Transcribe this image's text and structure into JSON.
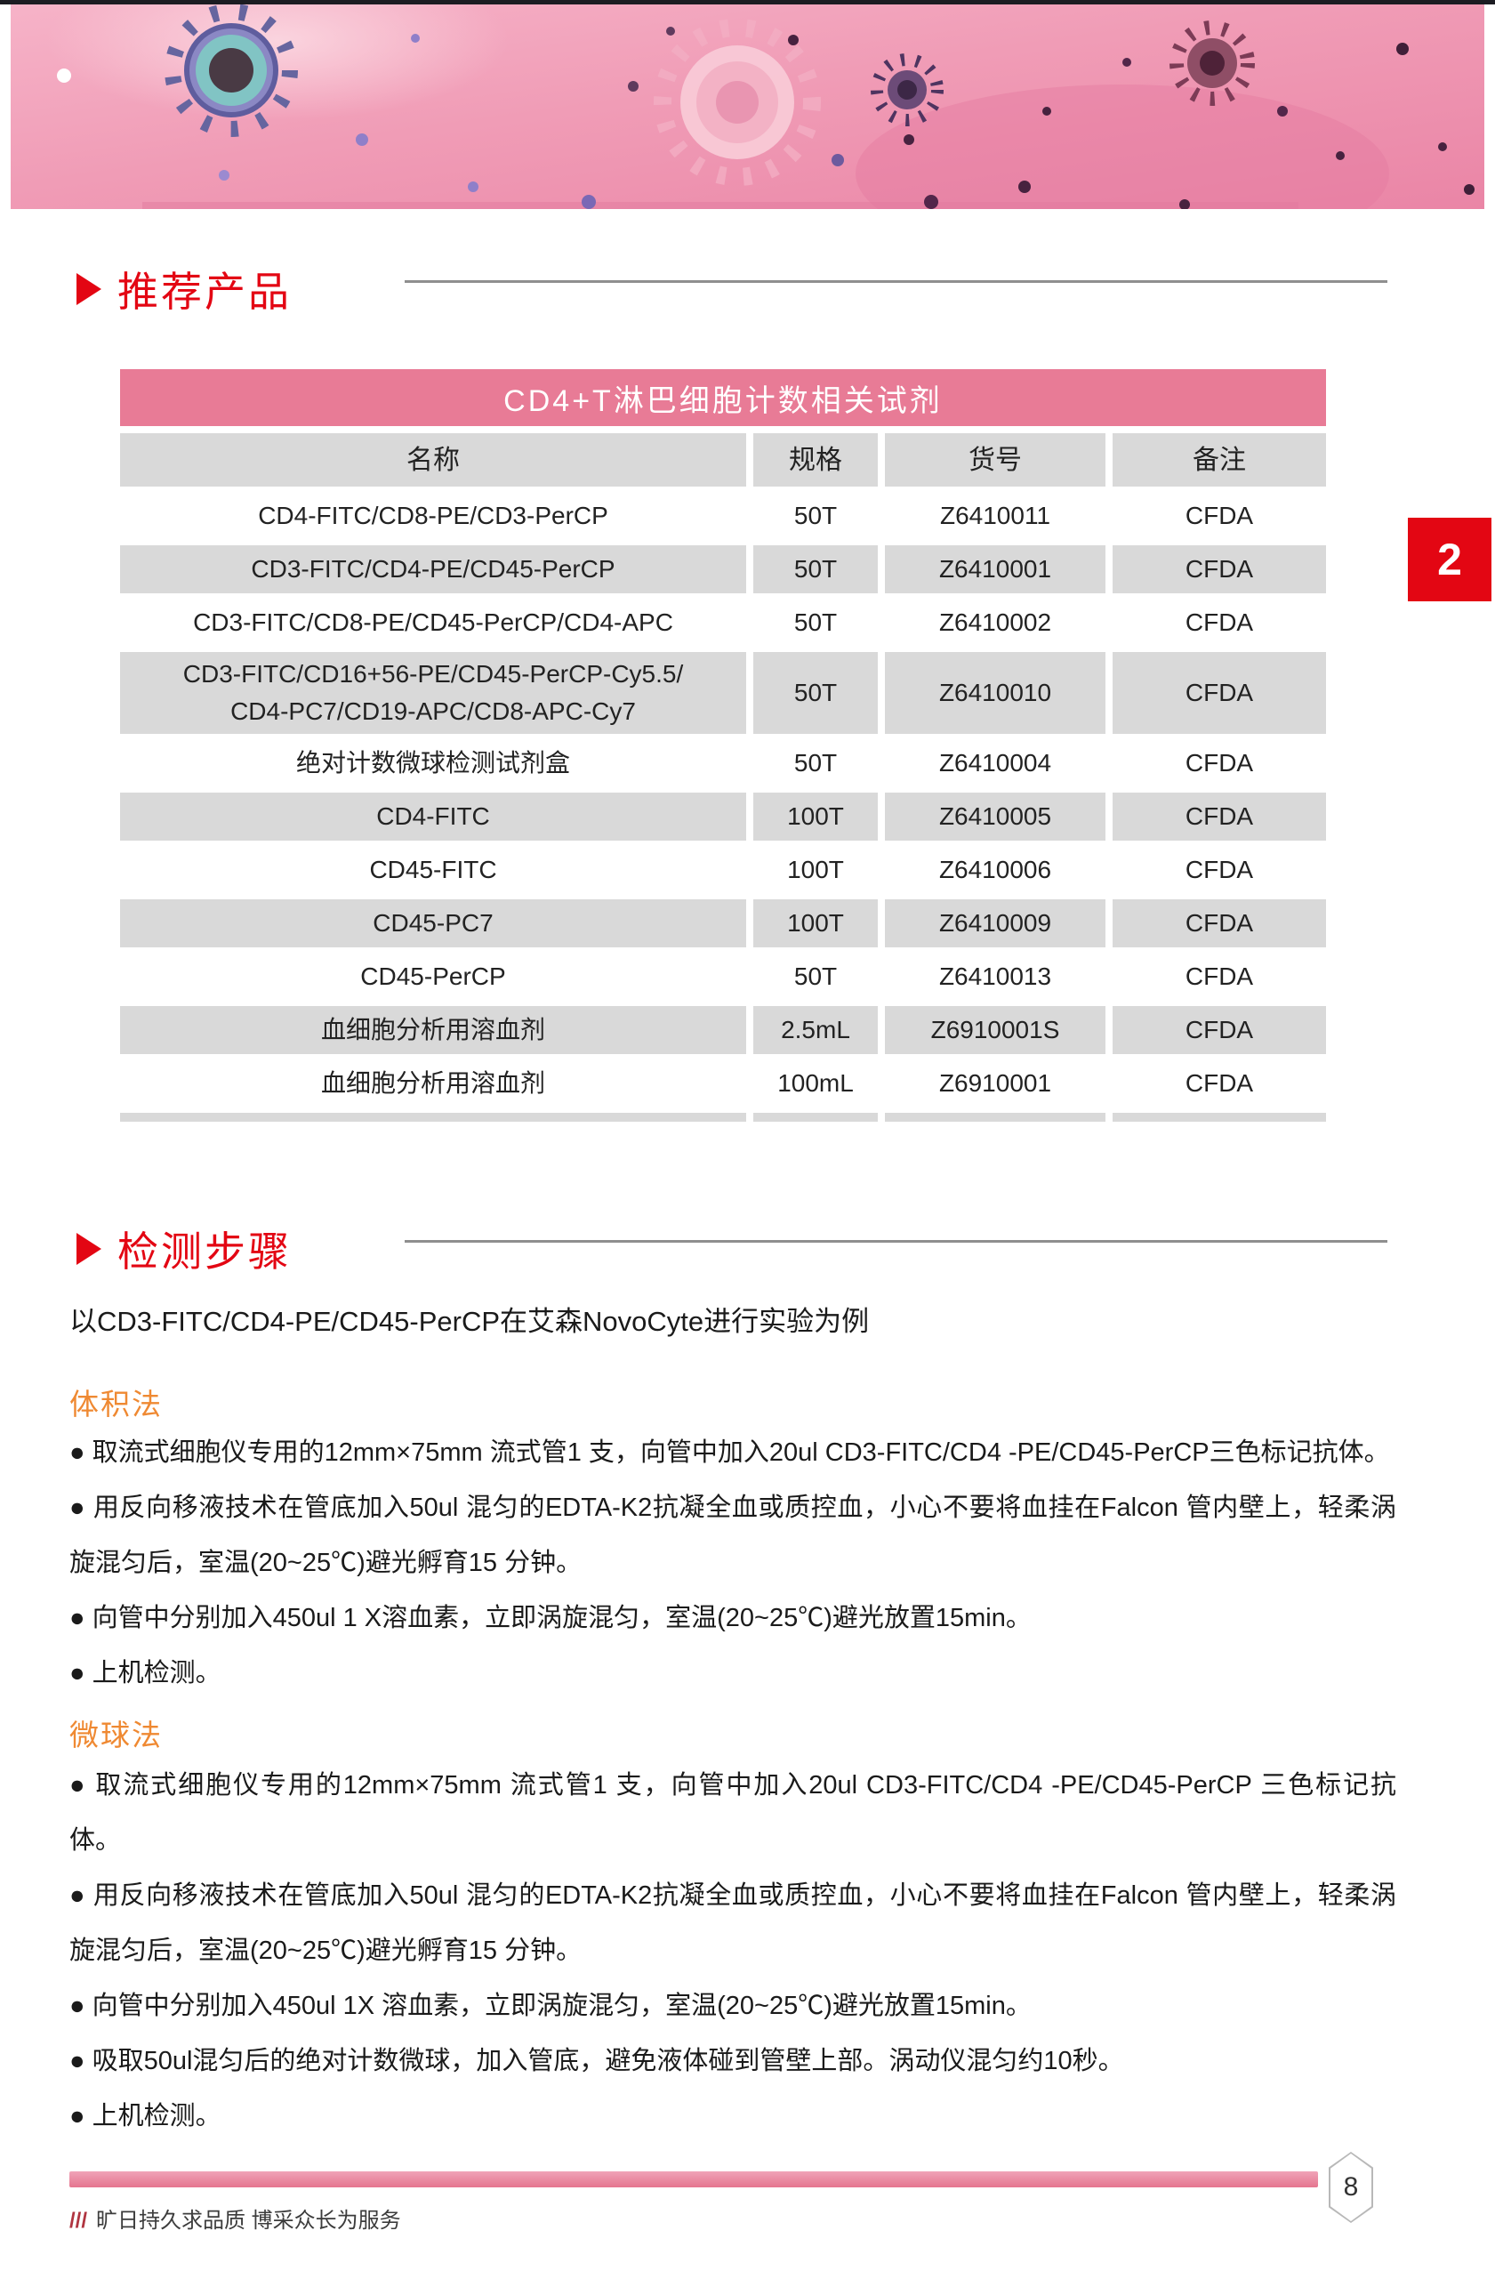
{
  "page": {
    "section1_title": "推荐产品",
    "section2_title": "检测步骤",
    "side_tab": "2",
    "page_number": "8",
    "footer_slashes": "///",
    "footer_tagline": "旷日持久求品质 博采众长为服务"
  },
  "table": {
    "title": "CD4+T淋巴细胞计数相关试剂",
    "headers": [
      "名称",
      "规格",
      "货号",
      "备注"
    ],
    "rows": [
      [
        "CD4-FITC/CD8-PE/CD3-PerCP",
        "50T",
        "Z6410011",
        "CFDA"
      ],
      [
        "CD3-FITC/CD4-PE/CD45-PerCP",
        "50T",
        "Z6410001",
        "CFDA"
      ],
      [
        "CD3-FITC/CD8-PE/CD45-PerCP/CD4-APC",
        "50T",
        "Z6410002",
        "CFDA"
      ],
      [
        "CD3-FITC/CD16+56-PE/CD45-PerCP-Cy5.5/\nCD4-PC7/CD19-APC/CD8-APC-Cy7",
        "50T",
        "Z6410010",
        "CFDA"
      ],
      [
        "绝对计数微球检测试剂盒",
        "50T",
        "Z6410004",
        "CFDA"
      ],
      [
        "CD4-FITC",
        "100T",
        "Z6410005",
        "CFDA"
      ],
      [
        "CD45-FITC",
        "100T",
        "Z6410006",
        "CFDA"
      ],
      [
        "CD45-PC7",
        "100T",
        "Z6410009",
        "CFDA"
      ],
      [
        "CD45-PerCP",
        "50T",
        "Z6410013",
        "CFDA"
      ],
      [
        "血细胞分析用溶血剂",
        "2.5mL",
        "Z6910001S",
        "CFDA"
      ],
      [
        "血细胞分析用溶血剂",
        "100mL",
        "Z6910001",
        "CFDA"
      ]
    ]
  },
  "steps": {
    "intro": "以CD3-FITC/CD4-PE/CD45-PerCP在艾森NovoCyte进行实验为例",
    "methods": [
      {
        "name": "体积法",
        "bullets": [
          "取流式细胞仪专用的12mm×75mm 流式管1 支，向管中加入20ul CD3-FITC/CD4 -PE/CD45-PerCP三色标记抗体。",
          "用反向移液技术在管底加入50ul 混匀的EDTA-K2抗凝全血或质控血，小心不要将血挂在Falcon 管内壁上，轻柔涡旋混匀后，室温(20~25℃)避光孵育15 分钟。",
          "向管中分别加入450ul 1 X溶血素，立即涡旋混匀，室温(20~25℃)避光放置15min。",
          "上机检测。"
        ]
      },
      {
        "name": "微球法",
        "bullets": [
          "取流式细胞仪专用的12mm×75mm 流式管1 支，向管中加入20ul CD3-FITC/CD4 -PE/CD45-PerCP 三色标记抗体。",
          "用反向移液技术在管底加入50ul 混匀的EDTA-K2抗凝全血或质控血，小心不要将血挂在Falcon 管内壁上，轻柔涡旋混匀后，室温(20~25℃)避光孵育15 分钟。",
          "向管中分别加入450ul 1X 溶血素，立即涡旋混匀，室温(20~25℃)避光放置15min。",
          "吸取50ul混匀后的绝对计数微球，加入管底，避免液体碰到管壁上部。涡动仪混匀约10秒。",
          "上机检测。"
        ]
      }
    ]
  },
  "colors": {
    "accent_red": "#e30613",
    "table_banner_pink": "#e87b96",
    "cell_gray": "#d9d9d9",
    "method_orange": "#ef8932",
    "banner_pink": "#f0a0ba"
  }
}
